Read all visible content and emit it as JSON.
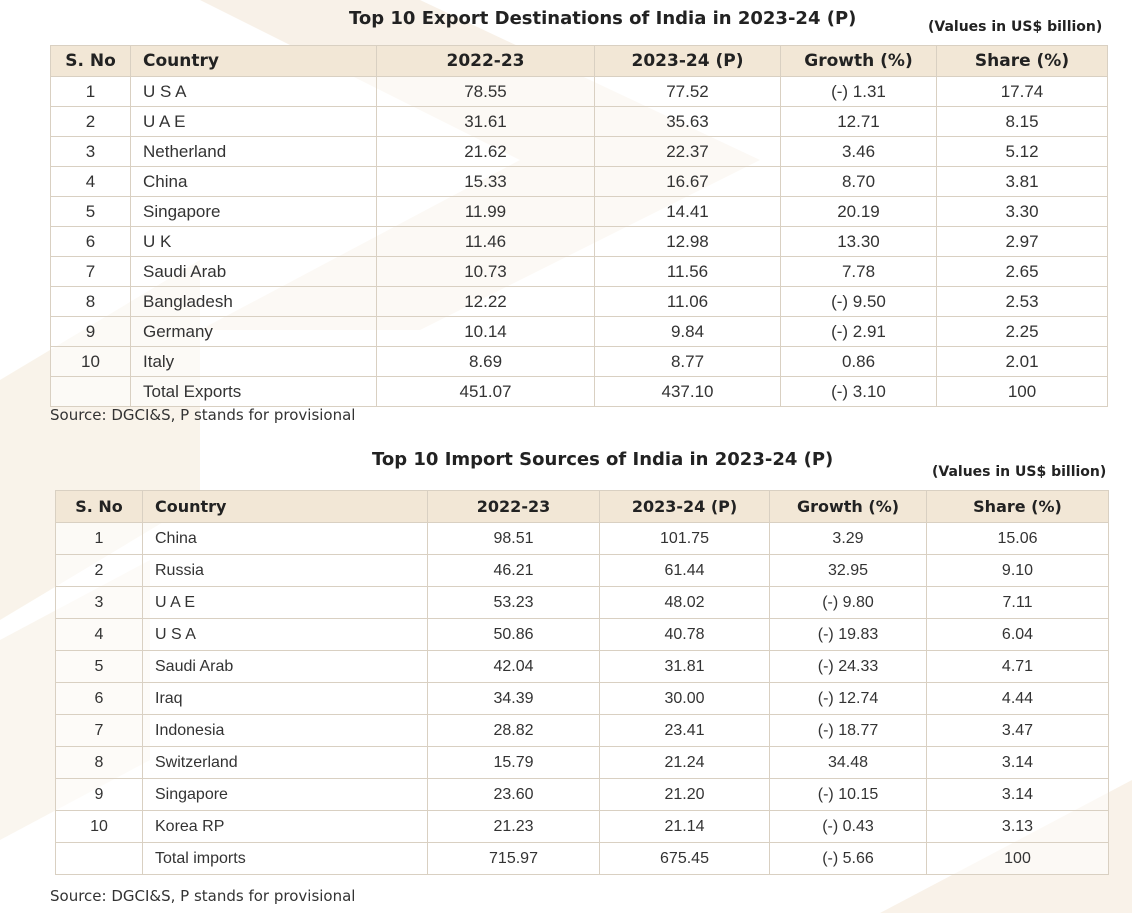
{
  "export_section": {
    "title": "Top 10 Export Destinations of India in 2023-24 (P)",
    "units": "(Values in US$ billion)",
    "columns": [
      "S. No",
      "Country",
      "2022-23",
      "2023-24 (P)",
      "Growth (%)",
      "Share (%)"
    ],
    "rows": [
      [
        "1",
        "U S A",
        "78.55",
        "77.52",
        "(-) 1.31",
        "17.74"
      ],
      [
        "2",
        "U A E",
        "31.61",
        "35.63",
        "12.71",
        "8.15"
      ],
      [
        "3",
        "Netherland",
        "21.62",
        "22.37",
        "3.46",
        "5.12"
      ],
      [
        "4",
        "China",
        "15.33",
        "16.67",
        "8.70",
        "3.81"
      ],
      [
        "5",
        "Singapore",
        "11.99",
        "14.41",
        "20.19",
        "3.30"
      ],
      [
        "6",
        "U K",
        "11.46",
        "12.98",
        "13.30",
        "2.97"
      ],
      [
        "7",
        "Saudi Arab",
        "10.73",
        "11.56",
        "7.78",
        "2.65"
      ],
      [
        "8",
        "Bangladesh",
        "12.22",
        "11.06",
        "(-) 9.50",
        "2.53"
      ],
      [
        "9",
        "Germany",
        "10.14",
        "9.84",
        "(-) 2.91",
        "2.25"
      ],
      [
        "10",
        "Italy",
        "8.69",
        "8.77",
        "0.86",
        "2.01"
      ],
      [
        "",
        "Total Exports",
        "451.07",
        "437.10",
        "(-) 3.10",
        "100"
      ]
    ],
    "source": "Source: DGCI&S, P stands for provisional"
  },
  "import_section": {
    "title": "Top 10 Import Sources of India in 2023-24 (P)",
    "units": "(Values in US$ billion)",
    "columns": [
      "S. No",
      "Country",
      "2022-23",
      "2023-24 (P)",
      "Growth (%)",
      "Share (%)"
    ],
    "rows": [
      [
        "1",
        "China",
        "98.51",
        "101.75",
        "3.29",
        "15.06"
      ],
      [
        "2",
        "Russia",
        "46.21",
        "61.44",
        "32.95",
        "9.10"
      ],
      [
        "3",
        "U A E",
        "53.23",
        "48.02",
        "(-) 9.80",
        "7.11"
      ],
      [
        "4",
        "U S A",
        "50.86",
        "40.78",
        "(-) 19.83",
        "6.04"
      ],
      [
        "5",
        "Saudi Arab",
        "42.04",
        "31.81",
        "(-) 24.33",
        "4.71"
      ],
      [
        "6",
        "Iraq",
        "34.39",
        "30.00",
        "(-) 12.74",
        "4.44"
      ],
      [
        "7",
        "Indonesia",
        "28.82",
        "23.41",
        "(-) 18.77",
        "3.47"
      ],
      [
        "8",
        "Switzerland",
        "15.79",
        "21.24",
        "34.48",
        "3.14"
      ],
      [
        "9",
        "Singapore",
        "23.60",
        "21.20",
        "(-) 10.15",
        "3.14"
      ],
      [
        "10",
        "Korea RP",
        "21.23",
        "21.14",
        "(-) 0.43",
        "3.13"
      ],
      [
        "",
        "Total imports",
        "715.97",
        "675.45",
        "(-) 5.66",
        "100"
      ]
    ],
    "source": "Source: DGCI&S, P stands for provisional"
  },
  "colors": {
    "header_bg": "#f2e7d6",
    "border": "#d9d0c2",
    "background_chevron": "#f7f0e5"
  }
}
